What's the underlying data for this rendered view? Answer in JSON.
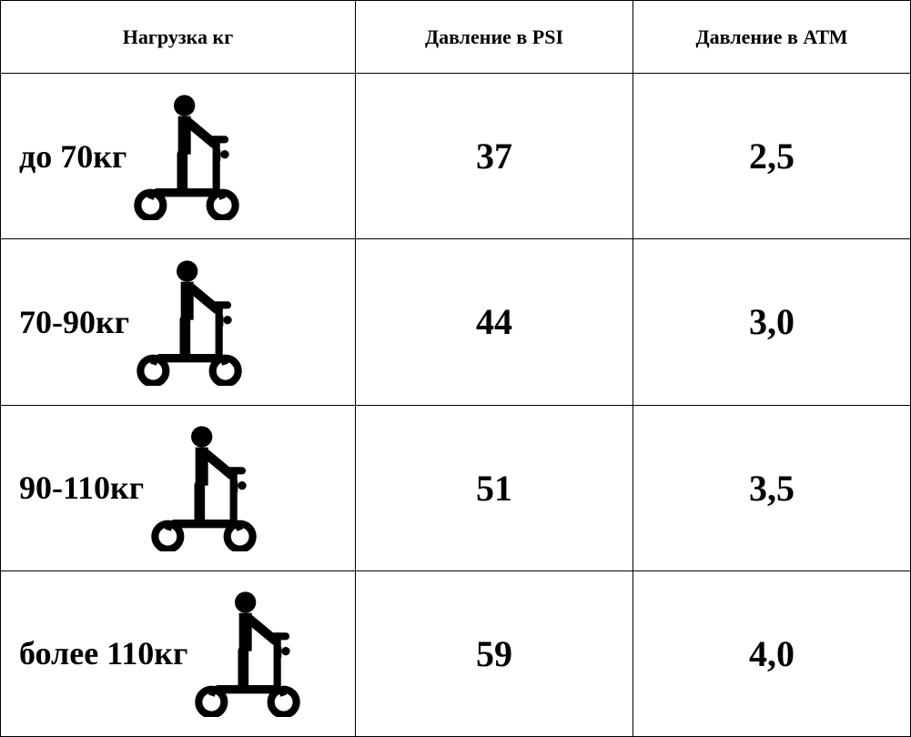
{
  "table": {
    "columns": [
      "Нагрузка кг",
      "Давление в PSI",
      "Давление в АТМ"
    ],
    "rows": [
      {
        "label": "до 70кг",
        "psi": "37",
        "atm": "2,5"
      },
      {
        "label": "70-90кг",
        "psi": "44",
        "atm": "3,0"
      },
      {
        "label": "90-110кг",
        "psi": "51",
        "atm": "3,5"
      },
      {
        "label": "более 110кг",
        "psi": "59",
        "atm": "4,0"
      }
    ],
    "header_fontsize": 22,
    "label_fontsize": 36,
    "value_fontsize": 40,
    "border_color": "#000000",
    "text_color": "#000000",
    "background_color": "#ffffff",
    "icon_color": "#000000",
    "column_widths": [
      "39%",
      "30.5%",
      "30.5%"
    ]
  }
}
